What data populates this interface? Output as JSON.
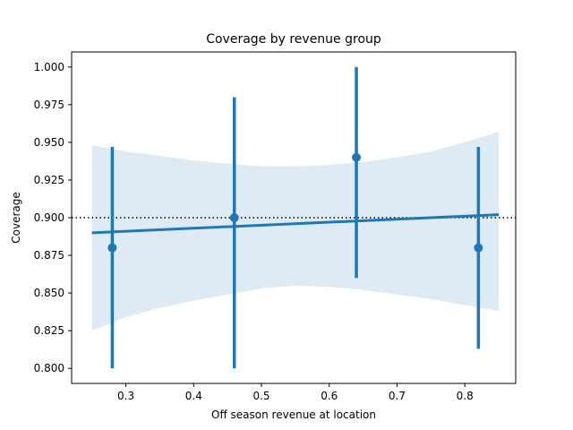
{
  "chart_data": {
    "type": "scatter",
    "title": "Coverage by revenue group",
    "xlabel": "Off season revenue at location",
    "ylabel": "Coverage",
    "xlim": [
      0.22,
      0.875
    ],
    "ylim": [
      0.79,
      1.01
    ],
    "xticks": [
      0.3,
      0.4,
      0.5,
      0.6,
      0.7,
      0.8
    ],
    "xtick_labels": [
      "0.3",
      "0.4",
      "0.5",
      "0.6",
      "0.7",
      "0.8"
    ],
    "yticks": [
      0.8,
      0.825,
      0.85,
      0.875,
      0.9,
      0.925,
      0.95,
      0.975,
      1.0
    ],
    "ytick_labels": [
      "0.800",
      "0.825",
      "0.850",
      "0.875",
      "0.900",
      "0.925",
      "0.950",
      "0.975",
      "1.000"
    ],
    "grid": false,
    "points": [
      {
        "x": 0.28,
        "y": 0.88,
        "ci_low": 0.8,
        "ci_high": 0.947
      },
      {
        "x": 0.46,
        "y": 0.9,
        "ci_low": 0.8,
        "ci_high": 0.98
      },
      {
        "x": 0.64,
        "y": 0.94,
        "ci_low": 0.86,
        "ci_high": 1.0
      },
      {
        "x": 0.82,
        "y": 0.88,
        "ci_low": 0.813,
        "ci_high": 0.947
      }
    ],
    "regression_line": {
      "x": [
        0.25,
        0.85
      ],
      "y": [
        0.89,
        0.902
      ]
    },
    "confidence_band": {
      "x": [
        0.25,
        0.3,
        0.35,
        0.4,
        0.45,
        0.5,
        0.55,
        0.6,
        0.65,
        0.7,
        0.75,
        0.8,
        0.85
      ],
      "lower": [
        0.825,
        0.834,
        0.84,
        0.845,
        0.849,
        0.853,
        0.855,
        0.854,
        0.852,
        0.849,
        0.846,
        0.842,
        0.838
      ],
      "upper": [
        0.948,
        0.944,
        0.941,
        0.938,
        0.936,
        0.934,
        0.934,
        0.935,
        0.937,
        0.94,
        0.944,
        0.95,
        0.957
      ]
    },
    "reference_line": {
      "y": 0.9,
      "style": "dotted"
    },
    "colors": {
      "series": "#1f77b4",
      "band": "#1f77b4",
      "reference": "#000000",
      "axes": "#000000"
    }
  }
}
